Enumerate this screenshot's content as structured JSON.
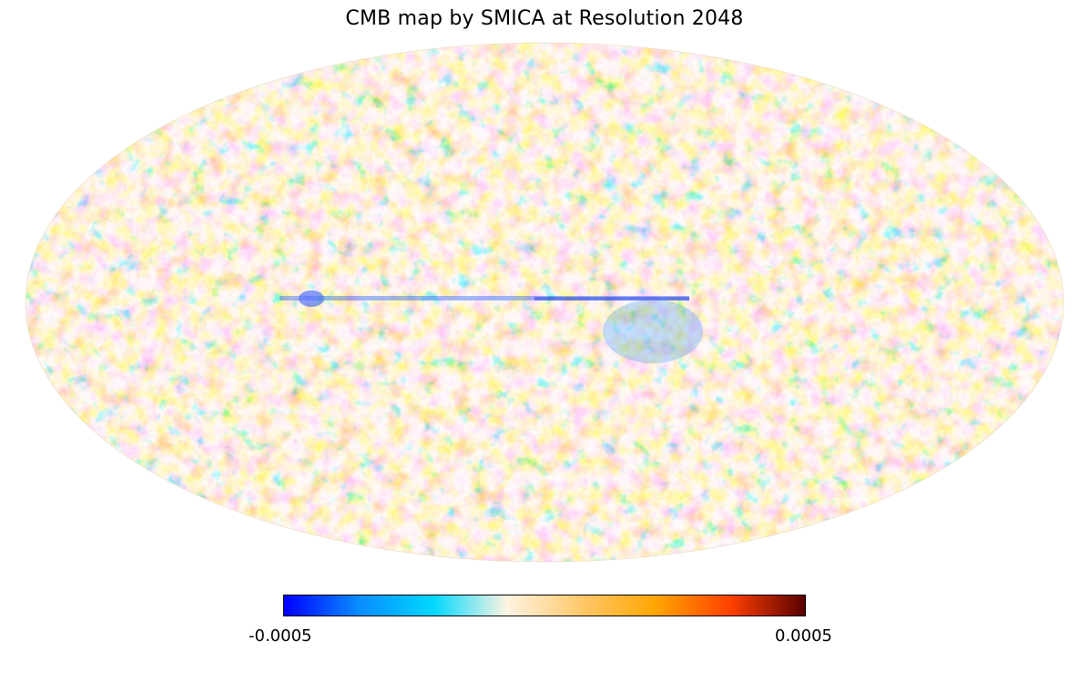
{
  "figure": {
    "title": "CMB map by SMICA at Resolution 2048",
    "projection": "Mollweide",
    "colorbar": {
      "min_label": "-0.0005",
      "max_label": "0.0005",
      "min": -0.0005,
      "max": 0.0005,
      "colormap_stops": [
        "#0000ff",
        "#0a8cff",
        "#00d8ff",
        "#fff4e2",
        "#ffc86a",
        "#ffa500",
        "#ff4000",
        "#5a0000"
      ]
    }
  }
}
